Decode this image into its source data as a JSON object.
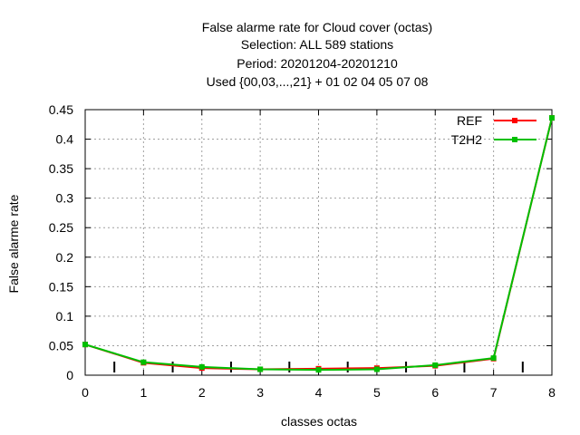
{
  "chart_data": {
    "type": "line",
    "title_lines": [
      "False alarme rate  for Cloud cover (octas)",
      "Selection: ALL    589 stations",
      "Period: 20201204-20201210",
      "Used {00,03,...,21} + 01 02 04 05 07 08"
    ],
    "xlabel": "classes octas",
    "ylabel": "False alarme rate",
    "xlim": [
      0,
      8
    ],
    "ylim": [
      0,
      0.45
    ],
    "x_ticks": [
      "0",
      "1",
      "2",
      "3",
      "4",
      "5",
      "6",
      "7",
      "8"
    ],
    "y_ticks": [
      "0",
      "0.05",
      "0.1",
      "0.15",
      "0.2",
      "0.25",
      "0.3",
      "0.35",
      "0.4",
      "0.45"
    ],
    "grid": true,
    "legend_position": "top-right",
    "x": [
      0,
      1,
      2,
      3,
      4,
      5,
      6,
      7,
      8
    ],
    "series": [
      {
        "name": "REF",
        "color": "#ff0000",
        "values": [
          0.052,
          0.021,
          0.012,
          0.01,
          0.011,
          0.012,
          0.016,
          0.028,
          0.436
        ]
      },
      {
        "name": "T2H2",
        "color": "#00c000",
        "values": [
          0.052,
          0.022,
          0.014,
          0.01,
          0.009,
          0.01,
          0.017,
          0.029,
          0.436
        ]
      }
    ],
    "bottom_marker_x": [
      0.5,
      1.5,
      2.5,
      3.5,
      4.5,
      5.5,
      6.5,
      7.5
    ]
  }
}
